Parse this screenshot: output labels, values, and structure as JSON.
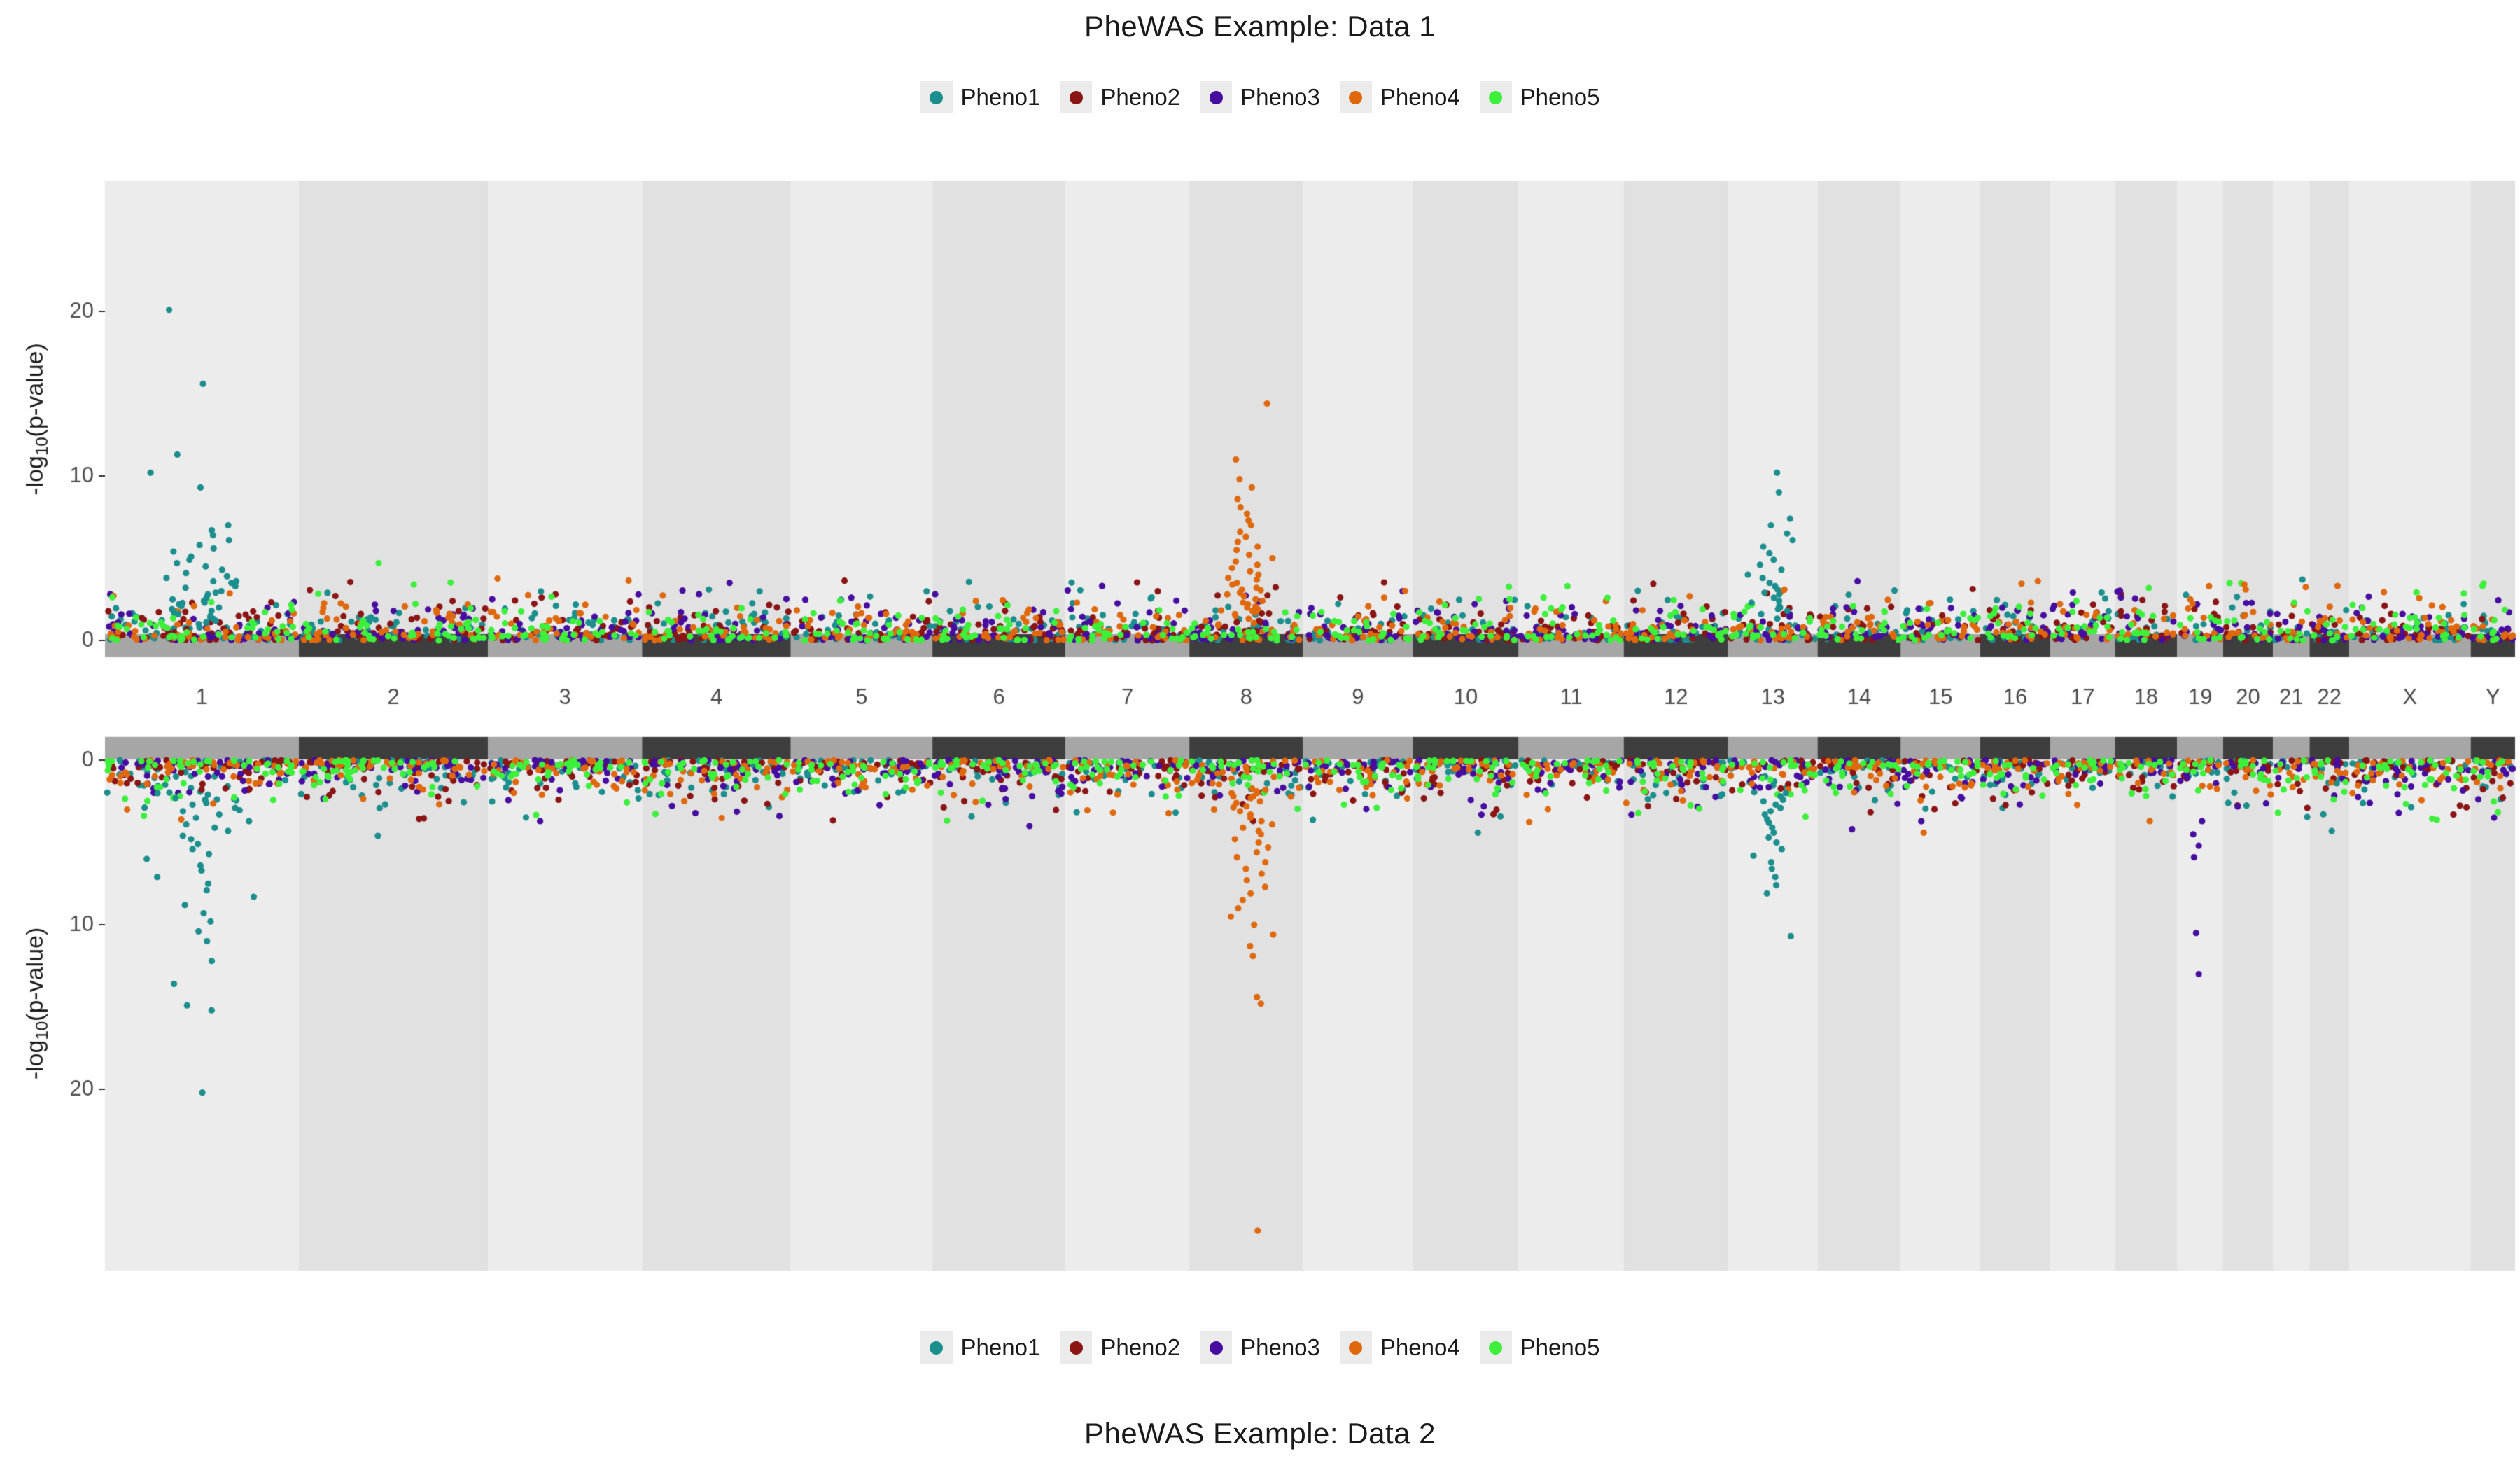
{
  "figure": {
    "title_top": "PheWAS Example: Data 1",
    "title_bottom": "PheWAS Example: Data 2",
    "y_axis_label": "-log10(p-value)",
    "y_axis_label_parts": [
      "-log",
      "10",
      "(p-value)"
    ]
  },
  "legend": {
    "items": [
      {
        "label": "Pheno1",
        "color": "#1B8E8E"
      },
      {
        "label": "Pheno2",
        "color": "#8B1414"
      },
      {
        "label": "Pheno3",
        "color": "#470CA0"
      },
      {
        "label": "Pheno4",
        "color": "#E0680C"
      },
      {
        "label": "Pheno5",
        "color": "#3CF03C"
      }
    ]
  },
  "axis": {
    "chromosomes": [
      "1",
      "2",
      "3",
      "4",
      "5",
      "6",
      "7",
      "8",
      "9",
      "10",
      "11",
      "12",
      "13",
      "14",
      "15",
      "16",
      "17",
      "18",
      "19",
      "20",
      "21",
      "22",
      "X",
      "Y"
    ],
    "chromosome_relative_sizes": [
      249,
      243,
      198,
      191,
      182,
      171,
      159,
      146,
      141,
      136,
      135,
      134,
      115,
      107,
      102,
      90,
      83,
      80,
      59,
      64,
      47,
      51,
      156,
      57
    ],
    "yticks": [
      0,
      10,
      20
    ]
  },
  "colors": {
    "page_background": "#FFFFFF",
    "panel_background_odd": "#ECECEC",
    "panel_background_even": "#E1E1E1",
    "strip_odd": "#A6A6A6",
    "strip_even": "#3E3E3E",
    "axis_text": "#4D4D4D",
    "tick_mark": "#333333",
    "title_text": "#1A1A1A",
    "legend_key_background": "#EBEBEB"
  },
  "chart_data": [
    {
      "type": "scatter",
      "variant": "phewas_manhattan",
      "title": "PheWAS Example: Data 1",
      "direction": "up",
      "xlabel": "",
      "ylabel": "-log10(p-value)",
      "ylim": [
        0,
        27.5
      ],
      "yticks": [
        0,
        10,
        20
      ],
      "series": [
        "Pheno1",
        "Pheno2",
        "Pheno3",
        "Pheno4",
        "Pheno5"
      ],
      "background_scatter": {
        "description": "dense scatter of all five phenotypes across all chromosomes",
        "value_range": [
          0,
          3.8
        ]
      },
      "peaks": [
        {
          "chrom": "1",
          "series": "Pheno1",
          "values": [
            20.1,
            15.6,
            11.3,
            10.2,
            9.3,
            7.0,
            6.7,
            6.4,
            6.1,
            5.8,
            5.6,
            5.4,
            5.1,
            4.9,
            4.7,
            4.5,
            4.3,
            4.1,
            3.9,
            3.8,
            3.6,
            3.5,
            3.3,
            3.2,
            3.0,
            2.9,
            2.8,
            2.6,
            2.5,
            2.4,
            2.3,
            2.2,
            2.1,
            2.0,
            1.9,
            1.8,
            1.7,
            1.6,
            1.5,
            1.4,
            1.3,
            1.2,
            1.1,
            1.0
          ]
        },
        {
          "chrom": "2",
          "series": "Pheno5",
          "values": [
            4.7,
            3.4
          ]
        },
        {
          "chrom": "8",
          "series": "Pheno4",
          "values": [
            14.4,
            11.0,
            9.8,
            9.3,
            8.6,
            8.1,
            7.7,
            7.3,
            7.0,
            6.6,
            6.3,
            6.0,
            5.7,
            5.5,
            5.2,
            5.0,
            4.8,
            4.6,
            4.4,
            4.2,
            4.0,
            3.8,
            3.7,
            3.5,
            3.4,
            3.2,
            3.1,
            2.9,
            2.8,
            2.7,
            2.5,
            2.4,
            2.3,
            2.2,
            2.0,
            1.9,
            1.8,
            1.7,
            1.6,
            1.5
          ]
        },
        {
          "chrom": "13",
          "series": "Pheno1",
          "values": [
            10.2,
            9.0,
            7.4,
            7.0,
            6.5,
            6.1,
            5.7,
            5.3,
            4.9,
            4.6,
            4.3,
            4.0,
            3.8,
            3.5,
            3.3,
            3.1,
            2.9,
            2.8,
            2.6,
            2.4,
            2.3,
            2.1,
            2.0,
            1.9,
            1.8,
            1.6
          ]
        },
        {
          "chrom": "11",
          "series": "Pheno5",
          "values": [
            3.3
          ]
        },
        {
          "chrom": "14",
          "series": "Pheno3",
          "values": [
            3.6
          ]
        },
        {
          "chrom": "19",
          "series": "Pheno4",
          "values": [
            3.3
          ]
        },
        {
          "chrom": "20",
          "series": "Pheno4",
          "values": [
            3.4,
            3.1
          ]
        }
      ]
    },
    {
      "type": "scatter",
      "variant": "phewas_manhattan",
      "title": "PheWAS Example: Data 2",
      "direction": "down",
      "xlabel": "",
      "ylabel": "-log10(p-value)",
      "ylim": [
        0,
        30.8
      ],
      "yticks": [
        0,
        10,
        20
      ],
      "series": [
        "Pheno1",
        "Pheno2",
        "Pheno3",
        "Pheno4",
        "Pheno5"
      ],
      "background_scatter": {
        "description": "dense scatter of all five phenotypes across all chromosomes, mirrored downward",
        "value_range": [
          0,
          3.8
        ]
      },
      "peaks": [
        {
          "chrom": "1",
          "series": "Pheno1",
          "values": [
            20.2,
            15.2,
            14.9,
            13.6,
            12.2,
            11.0,
            10.4,
            9.8,
            9.3,
            8.8,
            8.3,
            7.9,
            7.5,
            7.1,
            6.7,
            6.4,
            6.0,
            5.7,
            5.4,
            5.1,
            4.8,
            4.6,
            4.3,
            4.1,
            3.9,
            3.7,
            3.5,
            3.3,
            3.1,
            2.9,
            2.7,
            2.6,
            2.4,
            2.3,
            2.1,
            2.0
          ]
        },
        {
          "chrom": "2",
          "series": "Pheno1",
          "values": [
            4.6
          ]
        },
        {
          "chrom": "6",
          "series": "Pheno3",
          "values": [
            4.0
          ]
        },
        {
          "chrom": "8",
          "series": "Pheno4",
          "values": [
            28.6,
            14.8,
            14.4,
            11.9,
            11.3,
            10.6,
            10.0,
            9.5,
            9.0,
            8.5,
            8.1,
            7.7,
            7.3,
            6.9,
            6.6,
            6.2,
            5.9,
            5.6,
            5.3,
            5.0,
            4.8,
            4.5,
            4.3,
            4.1,
            3.9,
            3.7,
            3.5,
            3.3,
            3.1,
            3.0,
            2.8,
            2.6,
            2.5,
            2.3,
            2.2,
            2.0,
            1.9,
            1.8
          ]
        },
        {
          "chrom": "10",
          "series": "Pheno1",
          "values": [
            4.4
          ]
        },
        {
          "chrom": "13",
          "series": "Pheno1",
          "values": [
            10.7,
            8.1,
            7.6,
            7.1,
            6.6,
            6.2,
            5.8,
            5.4,
            5.0,
            4.7,
            4.4,
            4.1,
            3.8,
            3.6,
            3.3,
            3.1,
            2.9,
            2.7,
            2.5,
            2.4,
            2.2,
            2.0
          ]
        },
        {
          "chrom": "14",
          "series": "Pheno3",
          "values": [
            4.2
          ]
        },
        {
          "chrom": "15",
          "series": "Pheno4",
          "values": [
            4.4
          ]
        },
        {
          "chrom": "19",
          "series": "Pheno3",
          "values": [
            13.0,
            10.5,
            5.9,
            5.2,
            4.5,
            3.7
          ]
        },
        {
          "chrom": "22",
          "series": "Pheno1",
          "values": [
            4.3
          ]
        },
        {
          "chrom": "X",
          "series": "Pheno3",
          "values": [
            3.2
          ]
        }
      ]
    }
  ]
}
